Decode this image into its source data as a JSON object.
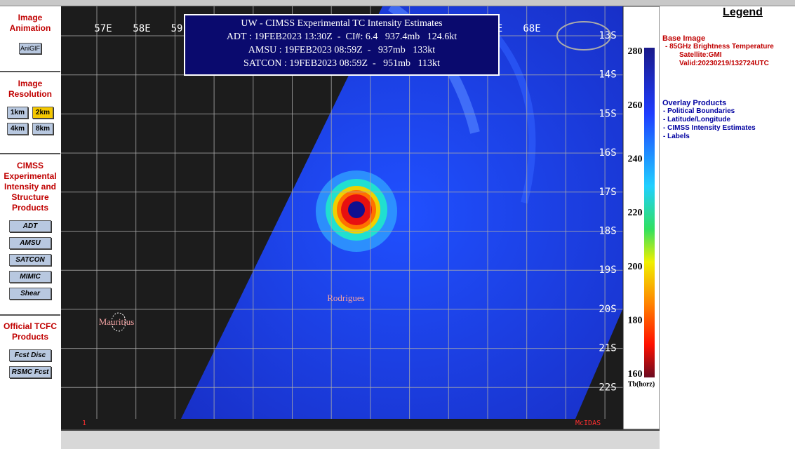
{
  "sidebar": {
    "sections": [
      {
        "title": "Image Animation",
        "buttons": [
          "AniGIF"
        ]
      },
      {
        "title": "Image Resolution",
        "buttons": [
          "1km",
          "2km",
          "4km",
          "8km"
        ]
      },
      {
        "title": "CIMSS Experimental Intensity and Structure Products",
        "buttons": [
          "ADT",
          "AMSU",
          "SATCON",
          "MIMIC",
          "Shear"
        ]
      },
      {
        "title": "Official TCFC Products",
        "buttons": [
          "Fcst Disc",
          "RSMC Fcst"
        ]
      }
    ]
  },
  "overlay": {
    "title": "UW - CIMSS Experimental TC Intensity Estimates",
    "lines": [
      "ADT : 19FEB2023 13:30Z  -  CI#: 6.4   937.4mb   124.6kt",
      "AMSU : 19FEB2023 08:59Z  -   937mb   133kt",
      "SATCON : 19FEB2023 08:59Z  -   951mb   113kt"
    ]
  },
  "map": {
    "lat_labels": [
      "13S",
      "14S",
      "15S",
      "16S",
      "17S",
      "18S",
      "19S",
      "20S",
      "21S",
      "22S"
    ],
    "lon_labels": [
      "57E",
      "58E",
      "59",
      "E",
      "68E"
    ],
    "places": [
      "Mauritius",
      "Rodrigues"
    ],
    "footer_left": "1",
    "footer_right": "McIDAS"
  },
  "colorbar": {
    "ticks": [
      280,
      260,
      240,
      220,
      200,
      180,
      160
    ],
    "unit": "Tb(horz)"
  },
  "legend": {
    "title": "Legend",
    "base_heading": "Base Image",
    "base_items": [
      "-  85GHz Brightness Temperature",
      "Satellite:GMI",
      "Valid:20230219/132724UTC"
    ],
    "overlay_heading": "Overlay Products",
    "overlay_items": [
      "-  Political Boundaries",
      "-  Latitude/Longitude",
      "-  CIMSS Intensity Estimates",
      "-  Labels"
    ]
  }
}
